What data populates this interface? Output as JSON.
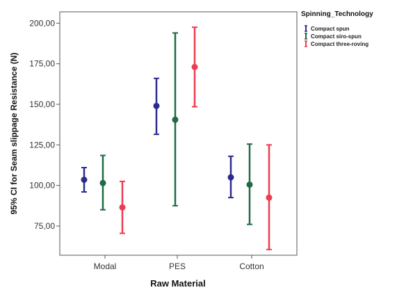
{
  "chart_data": {
    "type": "errorbar",
    "xlabel": "Raw Material",
    "ylabel": "95% CI for Seam slippage Resistance (N)",
    "categories": [
      "Modal",
      "PES",
      "Cotton"
    ],
    "yticks": [
      "75,00",
      "100,00",
      "125,00",
      "150,00",
      "175,00",
      "200,00"
    ],
    "ytick_values": [
      75,
      100,
      125,
      150,
      175,
      200
    ],
    "ylim": [
      57,
      207
    ],
    "grid": false,
    "legend": {
      "title": "Spinning_Technology",
      "placement": "top-right"
    },
    "series": [
      {
        "name": "Compact spun",
        "color": "#2b2b8f",
        "means": [
          103.5,
          149,
          105
        ],
        "lower": [
          96,
          131.5,
          92.5
        ],
        "upper": [
          111,
          166,
          118
        ]
      },
      {
        "name": "Compact siro-spun",
        "color": "#1f6b45",
        "means": [
          101.5,
          140.5,
          100.5
        ],
        "lower": [
          85,
          87.5,
          76
        ],
        "upper": [
          118.5,
          194,
          125.5
        ]
      },
      {
        "name": "Compact three-roving",
        "color": "#ee3b4f",
        "means": [
          86.5,
          173,
          92.5
        ],
        "lower": [
          70.5,
          148.5,
          60.5
        ],
        "upper": [
          102.5,
          197.5,
          125
        ]
      }
    ]
  }
}
